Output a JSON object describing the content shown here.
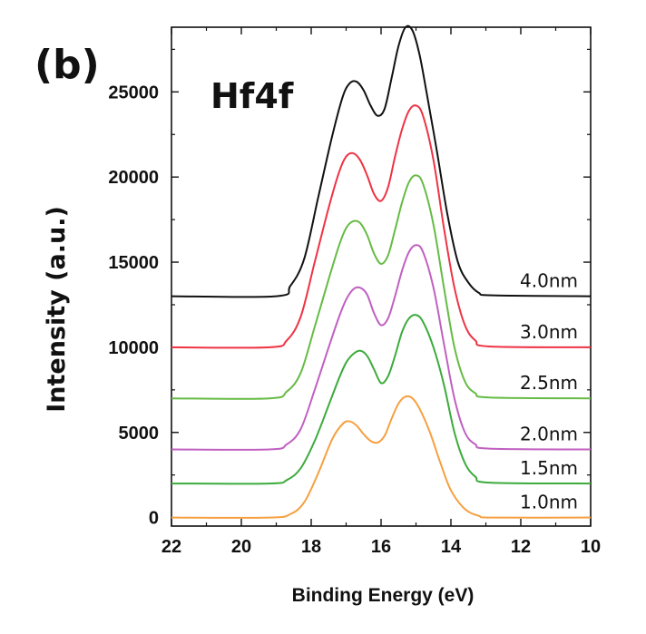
{
  "chart_data": {
    "type": "line",
    "panel_label": "(b)",
    "annotation": "Hf4f",
    "xlabel": "Binding Energy (eV)",
    "ylabel": "Intensity (a.u.)",
    "xlim": [
      22,
      10
    ],
    "ylim": [
      -500,
      28800
    ],
    "x_reversed": true,
    "x_ticks": [
      22,
      20,
      18,
      16,
      14,
      12,
      10
    ],
    "y_ticks": [
      0,
      5000,
      10000,
      15000,
      20000,
      25000
    ],
    "grid": false,
    "legend": "none",
    "series": [
      {
        "name": "1.0nm",
        "color": "#f5a040",
        "x": [
          22,
          19.2,
          18.6,
          18.2,
          17.8,
          17.4,
          17.1,
          16.9,
          16.7,
          16.5,
          16.3,
          16.1,
          15.9,
          15.7,
          15.5,
          15.3,
          15.1,
          14.9,
          14.6,
          14.3,
          14.0,
          13.6,
          13.2,
          12.8,
          10
        ],
        "values": [
          0,
          0,
          200,
          900,
          2600,
          4600,
          5500,
          5650,
          5400,
          4900,
          4500,
          4400,
          4800,
          5800,
          6700,
          7100,
          7000,
          6400,
          5000,
          3200,
          1600,
          500,
          100,
          0,
          0
        ]
      },
      {
        "name": "1.5nm",
        "color": "#3cab3c",
        "x": [
          22,
          19.2,
          18.7,
          18.3,
          17.9,
          17.5,
          17.2,
          17.0,
          16.8,
          16.6,
          16.4,
          16.2,
          16.0,
          15.8,
          15.6,
          15.4,
          15.2,
          15.0,
          14.8,
          14.5,
          14.2,
          13.9,
          13.6,
          13.3,
          12.9,
          10
        ],
        "values": [
          2000,
          2000,
          2200,
          2900,
          4500,
          6600,
          8200,
          9100,
          9600,
          9800,
          9500,
          8700,
          7900,
          8300,
          9500,
          10900,
          11700,
          11900,
          11500,
          10000,
          7800,
          5000,
          3200,
          2400,
          2050,
          2000
        ]
      },
      {
        "name": "2.0nm",
        "color": "#c060c0",
        "x": [
          22,
          19.2,
          18.7,
          18.3,
          17.9,
          17.5,
          17.2,
          17.0,
          16.8,
          16.6,
          16.4,
          16.2,
          16.0,
          15.8,
          15.6,
          15.4,
          15.2,
          15.0,
          14.8,
          14.5,
          14.2,
          13.9,
          13.6,
          13.3,
          12.9,
          10
        ],
        "values": [
          4000,
          4000,
          4300,
          5200,
          7500,
          10000,
          11800,
          12800,
          13400,
          13500,
          13100,
          12000,
          11300,
          11700,
          13000,
          14500,
          15600,
          16000,
          15600,
          13500,
          10200,
          7000,
          5000,
          4300,
          4050,
          4000
        ]
      },
      {
        "name": "2.5nm",
        "color": "#66bb44",
        "x": [
          22,
          19.2,
          18.7,
          18.3,
          17.9,
          17.5,
          17.2,
          17.0,
          16.8,
          16.6,
          16.4,
          16.2,
          16.0,
          15.8,
          15.6,
          15.4,
          15.2,
          15.0,
          14.8,
          14.5,
          14.2,
          13.9,
          13.6,
          13.3,
          12.9,
          10
        ],
        "values": [
          7000,
          7000,
          7400,
          8500,
          11200,
          14000,
          16000,
          17000,
          17400,
          17300,
          16600,
          15500,
          14900,
          15400,
          16900,
          18500,
          19700,
          20100,
          19600,
          17200,
          13500,
          10000,
          8000,
          7300,
          7050,
          7000
        ]
      },
      {
        "name": "3.0nm",
        "color": "#ee3344",
        "x": [
          22,
          19.2,
          18.7,
          18.3,
          17.9,
          17.5,
          17.2,
          17.0,
          16.8,
          16.6,
          16.4,
          16.2,
          16.0,
          15.8,
          15.6,
          15.4,
          15.2,
          15.0,
          14.8,
          14.5,
          14.2,
          13.9,
          13.6,
          13.3,
          12.9,
          10
        ],
        "values": [
          10000,
          10000,
          10400,
          11800,
          15000,
          18200,
          20300,
          21200,
          21400,
          21000,
          20100,
          19000,
          18600,
          19400,
          21200,
          22800,
          23900,
          24200,
          23600,
          21000,
          17000,
          13500,
          11300,
          10400,
          10050,
          10000
        ]
      },
      {
        "name": "4.0nm",
        "color": "#111111",
        "x": [
          22,
          19.0,
          18.6,
          18.2,
          17.8,
          17.4,
          17.1,
          16.9,
          16.7,
          16.5,
          16.3,
          16.1,
          15.9,
          15.7,
          15.5,
          15.3,
          15.1,
          14.9,
          14.7,
          14.4,
          14.1,
          13.8,
          13.5,
          13.2,
          12.8,
          10
        ],
        "values": [
          13000,
          13000,
          13600,
          15200,
          18800,
          22400,
          24700,
          25500,
          25600,
          25100,
          24200,
          23600,
          24000,
          25800,
          27700,
          28800,
          28600,
          27200,
          25000,
          21500,
          17800,
          15000,
          13800,
          13200,
          13050,
          13000
        ]
      }
    ]
  }
}
